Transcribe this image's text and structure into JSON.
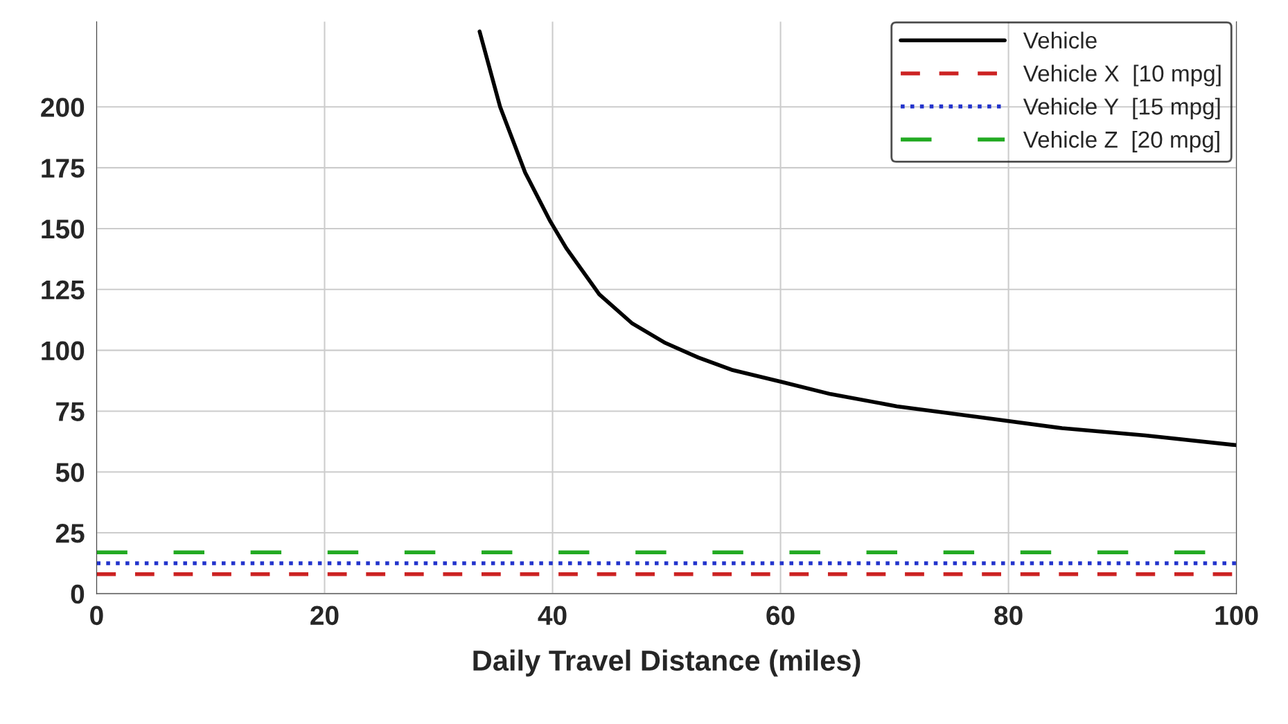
{
  "chart_data": {
    "type": "line",
    "xlabel": "Daily Travel Distance (miles)",
    "xlim": [
      0,
      100
    ],
    "xticks": [
      0,
      20,
      40,
      60,
      80,
      100
    ],
    "ylim": [
      0,
      235
    ],
    "yticks": [
      0,
      25,
      50,
      75,
      100,
      125,
      150,
      175,
      200
    ],
    "grid": true,
    "legend": "top right",
    "marker": "none",
    "series": [
      {
        "name": "Vehicle",
        "color": "#000000",
        "line_style": "solid",
        "x": [
          33.6,
          35.4,
          37.6,
          39.8,
          41.2,
          44.1,
          47.0,
          49.9,
          52.8,
          55.7,
          60.1,
          64.4,
          70.2,
          77.5,
          84.7,
          92.0,
          100
        ],
        "values": [
          231,
          200,
          173,
          153,
          142,
          123,
          111,
          103,
          97,
          92,
          87,
          82,
          77,
          72.5,
          68,
          65,
          61
        ]
      },
      {
        "name": "Vehicle X  [10 mpg]",
        "color": "#cc2222",
        "line_style": "dashed",
        "x": [
          0,
          100
        ],
        "values": [
          8,
          8
        ]
      },
      {
        "name": "Vehicle Y  [15 mpg]",
        "color": "#2233cc",
        "line_style": "dotted",
        "x": [
          0,
          100
        ],
        "values": [
          12.5,
          12.5
        ]
      },
      {
        "name": "Vehicle Z  [20 mpg]",
        "color": "#22aa22",
        "line_style": "longdash",
        "x": [
          0,
          100
        ],
        "values": [
          17,
          17
        ]
      }
    ]
  }
}
